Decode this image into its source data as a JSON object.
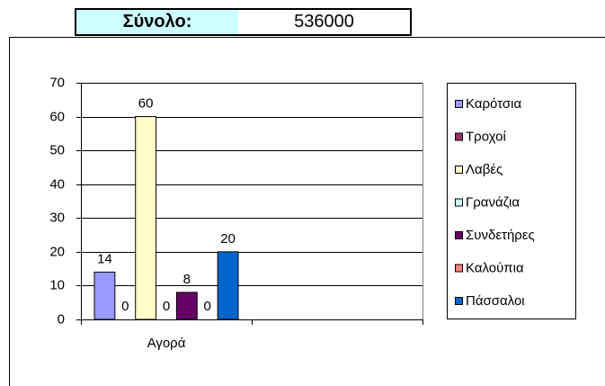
{
  "summary": {
    "label": "Σύνολο:",
    "value": 536000
  },
  "chart_data": {
    "type": "bar",
    "categories": [
      "Αγορά",
      null
    ],
    "series": [
      {
        "name": "Καρότσια",
        "color": "#9999ff",
        "values": [
          14,
          null
        ]
      },
      {
        "name": "Τροχοί",
        "color": "#993366",
        "values": [
          0,
          null
        ]
      },
      {
        "name": "Λαβές",
        "color": "#ffffcc",
        "values": [
          60,
          null
        ]
      },
      {
        "name": "Γρανάζια",
        "color": "#ccffff",
        "values": [
          0,
          null
        ]
      },
      {
        "name": "Συνδετήρες",
        "color": "#660066",
        "values": [
          8,
          null
        ]
      },
      {
        "name": "Καλούπια",
        "color": "#ff8080",
        "values": [
          0,
          null
        ]
      },
      {
        "name": "Πάσσαλοι",
        "color": "#0066cc",
        "values": [
          20,
          null
        ]
      }
    ],
    "ylim": [
      0,
      70
    ],
    "yticks": [
      0,
      10,
      20,
      30,
      40,
      50,
      60,
      70
    ],
    "grid": true,
    "data_labels": true,
    "legend": "right"
  }
}
